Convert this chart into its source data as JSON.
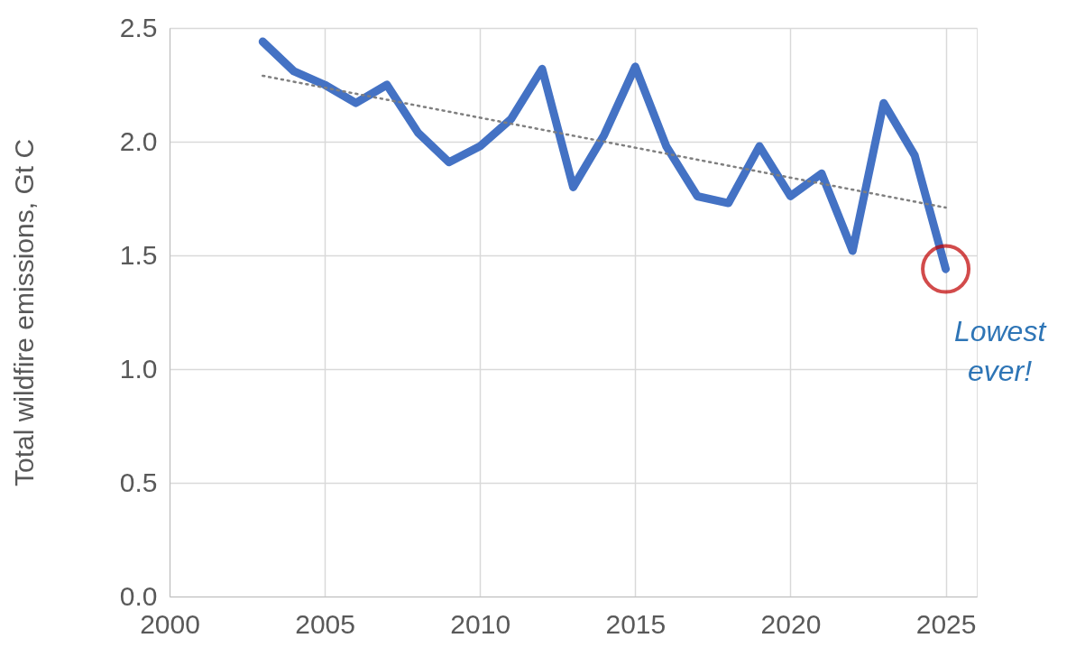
{
  "chart_data": {
    "type": "line",
    "ylabel": "Total wildfire emissions, Gt C",
    "x": [
      2003,
      2004,
      2005,
      2006,
      2007,
      2008,
      2009,
      2010,
      2011,
      2012,
      2013,
      2014,
      2015,
      2016,
      2017,
      2018,
      2019,
      2020,
      2021,
      2022,
      2023,
      2024,
      2025
    ],
    "series": [
      {
        "color": "#4472c4",
        "line_style": "solid",
        "values": [
          2.44,
          2.31,
          2.25,
          2.17,
          2.25,
          2.04,
          1.91,
          1.98,
          2.1,
          2.32,
          1.8,
          2.03,
          2.33,
          1.98,
          1.76,
          1.73,
          1.98,
          1.76,
          1.86,
          1.52,
          2.17,
          1.94,
          1.44
        ]
      },
      {
        "type": "line",
        "color": "#7f7f7f",
        "line_style": "dotted",
        "x": [
          2003,
          2025
        ],
        "values": [
          2.29,
          1.71
        ]
      }
    ],
    "xlim": [
      2000,
      2026
    ],
    "xticks": [
      2000,
      2005,
      2010,
      2015,
      2020,
      2025
    ],
    "ylim": [
      0,
      2.5
    ],
    "yticks": [
      {
        "value": 0,
        "label": "0.0"
      },
      {
        "value": 0.5,
        "label": "0.5"
      },
      {
        "value": 1,
        "label": "1.0"
      },
      {
        "value": 1.5,
        "label": "1.5"
      },
      {
        "value": 2,
        "label": "2.0"
      },
      {
        "value": 2.5,
        "label": "2.5"
      }
    ],
    "grid": true,
    "marker": "none",
    "annotations": [
      {
        "text": "Lowest ever!",
        "x": 2025,
        "y": 1.44
      }
    ]
  }
}
